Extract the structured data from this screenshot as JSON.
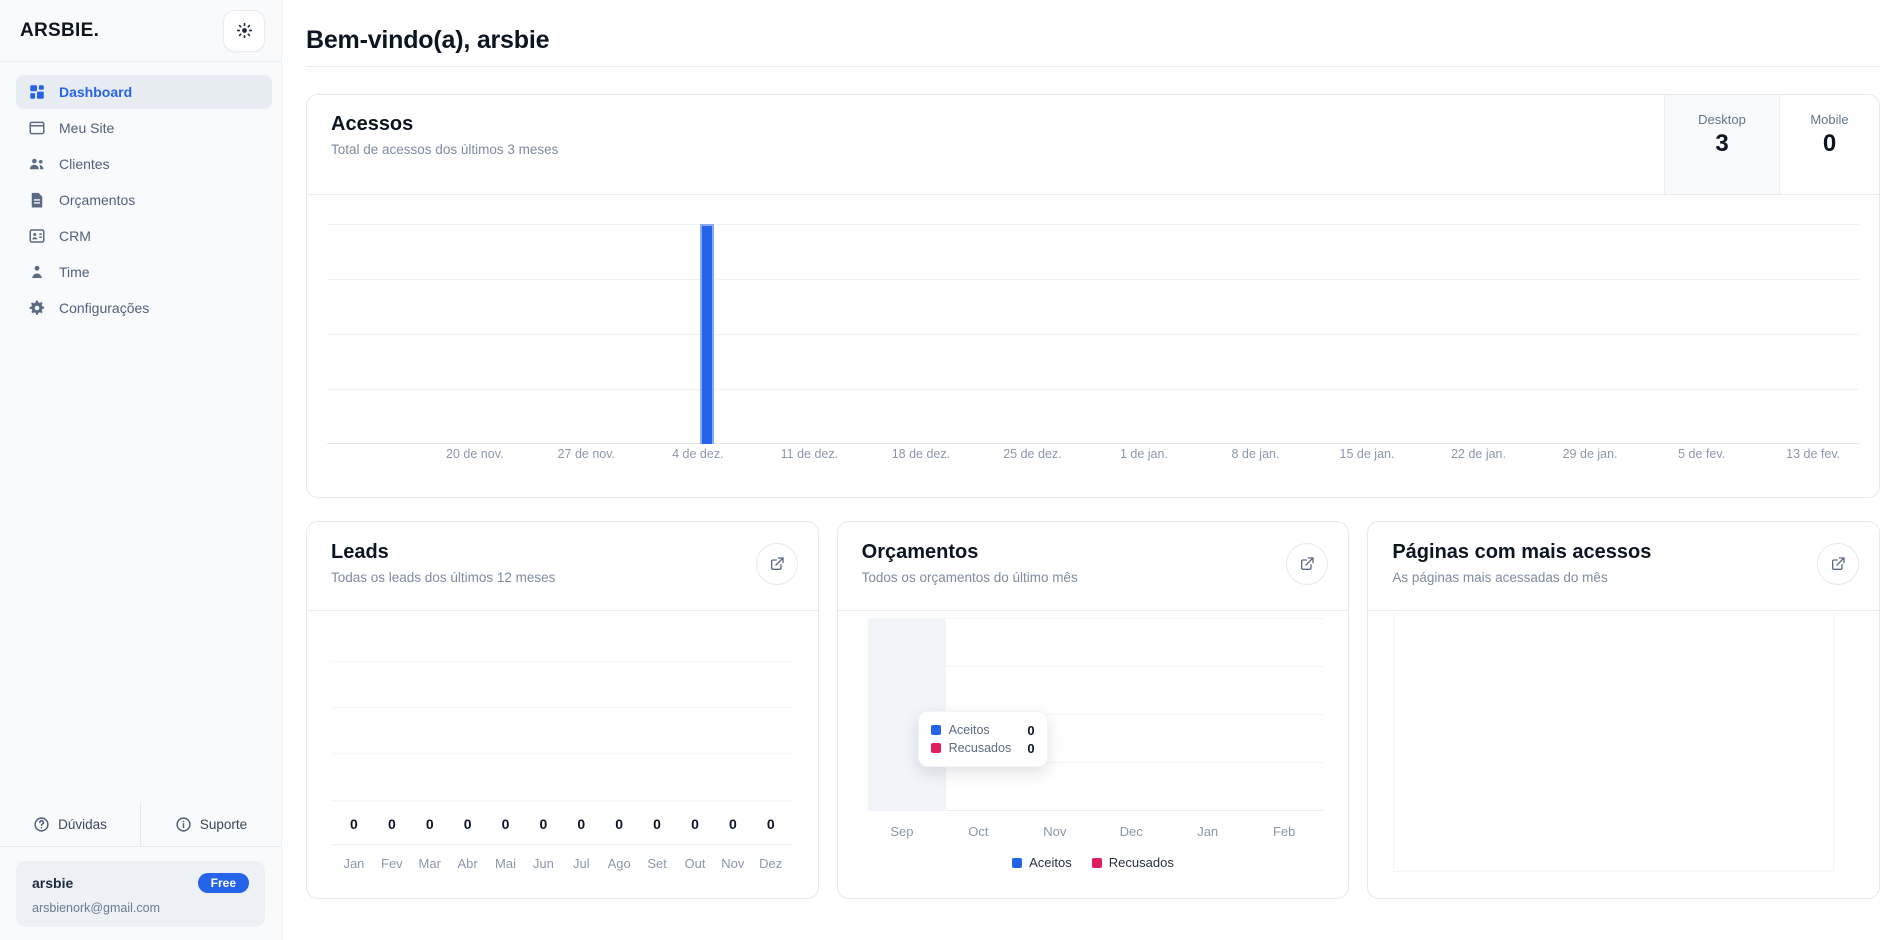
{
  "sidebar": {
    "logo": "ARSBIE.",
    "nav": [
      {
        "id": "dashboard",
        "label": "Dashboard",
        "icon": "dashboard-grid-icon",
        "active": true
      },
      {
        "id": "meu-site",
        "label": "Meu Site",
        "icon": "browser-window-icon",
        "active": false
      },
      {
        "id": "clientes",
        "label": "Clientes",
        "icon": "users-icon",
        "active": false
      },
      {
        "id": "orcamentos",
        "label": "Orçamentos",
        "icon": "document-icon",
        "active": false
      },
      {
        "id": "crm",
        "label": "CRM",
        "icon": "contact-card-icon",
        "active": false
      },
      {
        "id": "time",
        "label": "Time",
        "icon": "person-icon",
        "active": false
      },
      {
        "id": "configuracoes",
        "label": "Configurações",
        "icon": "gear-icon",
        "active": false
      }
    ],
    "help": {
      "duvidas": "Dúvidas",
      "suporte": "Suporte"
    },
    "user": {
      "name": "arsbie",
      "plan_badge": "Free",
      "email": "arsbienork@gmail.com"
    }
  },
  "header": {
    "title": "Bem-vindo(a), arsbie"
  },
  "acessos": {
    "title": "Acessos",
    "subtitle": "Total de acessos dos últimos 3 meses",
    "stats": [
      {
        "label": "Desktop",
        "value": "3"
      },
      {
        "label": "Mobile",
        "value": "0"
      }
    ]
  },
  "leads": {
    "title": "Leads",
    "subtitle": "Todas os leads dos últimos 12 meses"
  },
  "orcamentos": {
    "title": "Orçamentos",
    "subtitle": "Todos os orçamentos do último mês"
  },
  "paginas": {
    "title": "Páginas com mais acessos",
    "subtitle": "As páginas mais acessadas do mês"
  },
  "colors": {
    "accent": "#2563eb",
    "danger": "#e11d5f",
    "active_nav_text": "#2563eb",
    "desktop_cell_bg": "#f7f9fb"
  },
  "chart_data": [
    {
      "id": "acessos",
      "type": "bar",
      "title": "Acessos",
      "categories": [
        "20 de nov.",
        "27 de nov.",
        "4 de dez.",
        "11 de dez.",
        "18 de dez.",
        "25 de dez.",
        "1 de jan.",
        "8 de jan.",
        "15 de jan.",
        "22 de jan.",
        "29 de jan.",
        "5 de fev.",
        "13 de fev."
      ],
      "values": [
        0,
        0,
        3,
        0,
        0,
        0,
        0,
        0,
        0,
        0,
        0,
        0,
        0
      ],
      "ylim": [
        0,
        3
      ],
      "grid": true,
      "bar_color": "#2563eb",
      "totals": {
        "desktop": 3,
        "mobile": 0
      }
    },
    {
      "id": "leads",
      "type": "bar",
      "title": "Leads",
      "categories": [
        "Jan",
        "Fev",
        "Mar",
        "Abr",
        "Mai",
        "Jun",
        "Jul",
        "Ago",
        "Set",
        "Out",
        "Nov",
        "Dez"
      ],
      "values": [
        0,
        0,
        0,
        0,
        0,
        0,
        0,
        0,
        0,
        0,
        0,
        0
      ],
      "value_labels_shown": true,
      "grid": true
    },
    {
      "id": "orcamentos",
      "type": "bar",
      "title": "Orçamentos",
      "categories": [
        "Sep",
        "Oct",
        "Nov",
        "Dec",
        "Jan",
        "Feb"
      ],
      "series": [
        {
          "name": "Aceitos",
          "color": "#2563eb",
          "values": [
            0,
            0,
            0,
            0,
            0,
            0
          ]
        },
        {
          "name": "Recusados",
          "color": "#e11d5f",
          "values": [
            0,
            0,
            0,
            0,
            0,
            0
          ]
        }
      ],
      "legend_position": "bottom",
      "grid": true,
      "tooltip": {
        "visible": true,
        "hovered_category": "Sep",
        "rows": [
          {
            "label": "Aceitos",
            "value": 0
          },
          {
            "label": "Recusados",
            "value": 0
          }
        ]
      }
    }
  ]
}
